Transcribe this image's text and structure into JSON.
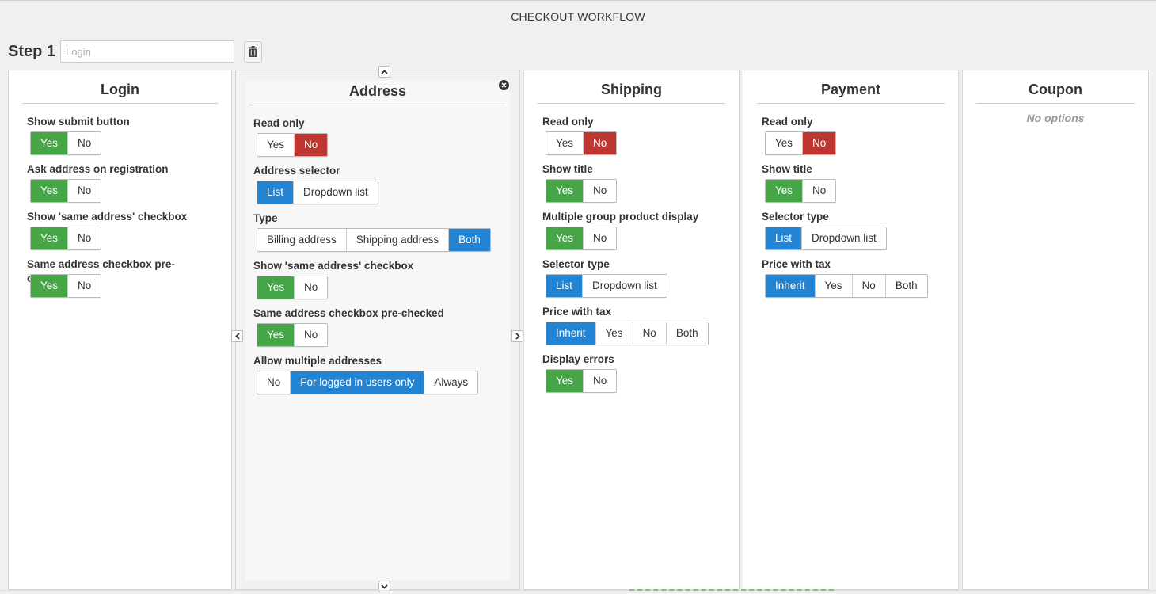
{
  "page": {
    "title": "CHECKOUT WORKFLOW"
  },
  "step": {
    "label": "Step 1",
    "input_value": "",
    "input_placeholder": "Login"
  },
  "columns": [
    {
      "title": "Login",
      "options": [
        {
          "label": "Show submit button",
          "buttons": [
            {
              "label": "Yes",
              "state": "green"
            },
            {
              "label": "No",
              "state": ""
            }
          ]
        },
        {
          "label": "Ask address on registration",
          "buttons": [
            {
              "label": "Yes",
              "state": "green"
            },
            {
              "label": "No",
              "state": ""
            }
          ]
        },
        {
          "label": "Show 'same address' checkbox",
          "buttons": [
            {
              "label": "Yes",
              "state": "green"
            },
            {
              "label": "No",
              "state": ""
            }
          ]
        },
        {
          "label": "Same address checkbox pre-checked",
          "buttons": [
            {
              "label": "Yes",
              "state": "green"
            },
            {
              "label": "No",
              "state": ""
            }
          ]
        }
      ]
    },
    {
      "title": "Address",
      "options": [
        {
          "label": "Read only",
          "buttons": [
            {
              "label": "Yes",
              "state": ""
            },
            {
              "label": "No",
              "state": "red"
            }
          ]
        },
        {
          "label": "Address selector",
          "buttons": [
            {
              "label": "List",
              "state": "blue"
            },
            {
              "label": "Dropdown list",
              "state": ""
            }
          ]
        },
        {
          "label": "Type",
          "buttons": [
            {
              "label": "Billing address",
              "state": ""
            },
            {
              "label": "Shipping address",
              "state": ""
            },
            {
              "label": "Both",
              "state": "blue"
            }
          ]
        },
        {
          "label": "Show 'same address' checkbox",
          "buttons": [
            {
              "label": "Yes",
              "state": "green"
            },
            {
              "label": "No",
              "state": ""
            }
          ]
        },
        {
          "label": "Same address checkbox pre-checked",
          "buttons": [
            {
              "label": "Yes",
              "state": "green"
            },
            {
              "label": "No",
              "state": ""
            }
          ]
        },
        {
          "label": "Allow multiple addresses",
          "buttons": [
            {
              "label": "No",
              "state": ""
            },
            {
              "label": "For logged in users only",
              "state": "blue"
            },
            {
              "label": "Always",
              "state": ""
            }
          ]
        }
      ]
    },
    {
      "title": "Shipping",
      "options": [
        {
          "label": "Read only",
          "buttons": [
            {
              "label": "Yes",
              "state": ""
            },
            {
              "label": "No",
              "state": "red"
            }
          ]
        },
        {
          "label": "Show title",
          "buttons": [
            {
              "label": "Yes",
              "state": "green"
            },
            {
              "label": "No",
              "state": ""
            }
          ]
        },
        {
          "label": "Multiple group product display",
          "buttons": [
            {
              "label": "Yes",
              "state": "green"
            },
            {
              "label": "No",
              "state": ""
            }
          ]
        },
        {
          "label": "Selector type",
          "buttons": [
            {
              "label": "List",
              "state": "blue"
            },
            {
              "label": "Dropdown list",
              "state": ""
            }
          ]
        },
        {
          "label": "Price with tax",
          "buttons": [
            {
              "label": "Inherit",
              "state": "blue"
            },
            {
              "label": "Yes",
              "state": ""
            },
            {
              "label": "No",
              "state": ""
            },
            {
              "label": "Both",
              "state": ""
            }
          ]
        },
        {
          "label": "Display errors",
          "buttons": [
            {
              "label": "Yes",
              "state": "green"
            },
            {
              "label": "No",
              "state": ""
            }
          ]
        }
      ]
    },
    {
      "title": "Payment",
      "options": [
        {
          "label": "Read only",
          "buttons": [
            {
              "label": "Yes",
              "state": ""
            },
            {
              "label": "No",
              "state": "red"
            }
          ]
        },
        {
          "label": "Show title",
          "buttons": [
            {
              "label": "Yes",
              "state": "green"
            },
            {
              "label": "No",
              "state": ""
            }
          ]
        },
        {
          "label": "Selector type",
          "buttons": [
            {
              "label": "List",
              "state": "blue"
            },
            {
              "label": "Dropdown list",
              "state": ""
            }
          ]
        },
        {
          "label": "Price with tax",
          "buttons": [
            {
              "label": "Inherit",
              "state": "blue"
            },
            {
              "label": "Yes",
              "state": ""
            },
            {
              "label": "No",
              "state": ""
            },
            {
              "label": "Both",
              "state": ""
            }
          ]
        }
      ]
    },
    {
      "title": "Coupon",
      "no_options": "No options",
      "options": []
    }
  ],
  "colors": {
    "green": "#46a546",
    "red": "#bd362f",
    "blue": "#2384d3"
  },
  "icons": {
    "trash": "trash-icon",
    "up": "chevron-up-icon",
    "down": "chevron-down-icon",
    "left": "chevron-left-icon",
    "right": "chevron-right-icon",
    "close": "close-icon"
  }
}
